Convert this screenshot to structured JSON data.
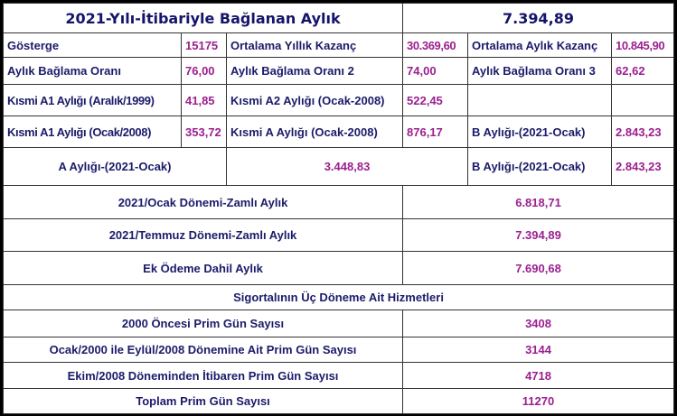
{
  "title": {
    "label": "2021-Yılı-İtibariyle Bağlanan Aylık",
    "value": "7.394,89"
  },
  "rows": [
    [
      {
        "label": "Gösterge",
        "value": "15175"
      },
      {
        "label": "Ortalama Yıllık Kazanç",
        "value": "30.369,60"
      },
      {
        "label": "Ortalama Aylık Kazanç",
        "value": "10.845,90"
      }
    ],
    [
      {
        "label": "Aylık Bağlama Oranı",
        "value": "76,00"
      },
      {
        "label": "Aylık Bağlama Oranı 2",
        "value": "74,00"
      },
      {
        "label": "Aylık Bağlama Oranı 3",
        "value": "62,62"
      }
    ],
    [
      {
        "label": "Kısmi A1 Aylığı (Aralık/1999)",
        "value": "41,85"
      },
      {
        "label": "Kısmi A2 Aylığı (Ocak-2008)",
        "value": "522,45"
      }
    ],
    [
      {
        "label": "Kısmi A1 Aylığı (Ocak/2008)",
        "value": "353,72"
      },
      {
        "label": "Kısmi A Aylığı (Ocak-2008)",
        "value": "876,17"
      },
      {
        "label": "B Aylığı-(2021-Ocak)",
        "value": "2.843,23"
      }
    ],
    [
      {
        "label": "A Aylığı-(2021-Ocak)",
        "value": "3.448,83"
      },
      {
        "label": "B Aylığı-(2021-Ocak)",
        "value": "2.843,23"
      }
    ]
  ],
  "summary": [
    {
      "label": "2021/Ocak Dönemi-Zamlı Aylık",
      "value": "6.818,71"
    },
    {
      "label": "2021/Temmuz Dönemi-Zamlı Aylık",
      "value": "7.394,89"
    },
    {
      "label": "Ek Ödeme Dahil Aylık",
      "value": "7.690,68"
    }
  ],
  "service_header": "Sigortalının Üç Döneme Ait Hizmetleri",
  "service": [
    {
      "label": "2000 Öncesi Prim Gün Sayısı",
      "value": "3408"
    },
    {
      "label": "Ocak/2000 ile Eylül/2008 Dönemine Ait Prim Gün Sayısı",
      "value": "3144"
    },
    {
      "label": "Ekim/2008 Döneminden İtibaren Prim Gün Sayısı",
      "value": "4718"
    },
    {
      "label": "Toplam Prim Gün Sayısı",
      "value": "11270"
    }
  ],
  "colors": {
    "label": "#1b1b6b",
    "value": "#9b208f"
  }
}
